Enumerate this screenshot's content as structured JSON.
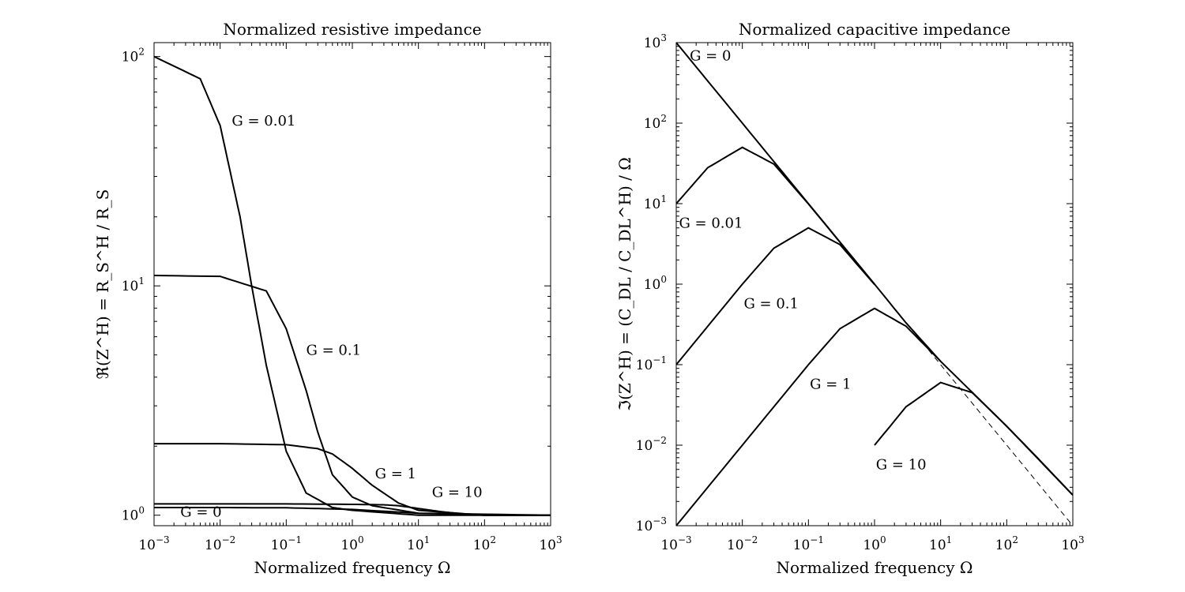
{
  "chart_data": [
    {
      "type": "line",
      "title": "Normalized resistive impedance",
      "xlabel": "Normalized frequency Ω",
      "ylabel": "ℜ(Z^H) = R_S^H / R_S",
      "xscale": "log",
      "yscale": "log",
      "xlim": [
        0.001,
        1000
      ],
      "ylim": [
        0.9,
        115
      ],
      "x_ticks": [
        {
          "value": 0.001,
          "base": "10",
          "exp": "−3"
        },
        {
          "value": 0.01,
          "base": "10",
          "exp": "−2"
        },
        {
          "value": 0.1,
          "base": "10",
          "exp": "−1"
        },
        {
          "value": 1,
          "base": "10",
          "exp": "0"
        },
        {
          "value": 10,
          "base": "10",
          "exp": "1"
        },
        {
          "value": 100,
          "base": "10",
          "exp": "2"
        },
        {
          "value": 1000,
          "base": "10",
          "exp": "3"
        }
      ],
      "y_ticks": [
        {
          "value": 1,
          "base": "10",
          "exp": "0"
        },
        {
          "value": 10,
          "base": "10",
          "exp": "1"
        },
        {
          "value": 100,
          "base": "10",
          "exp": "2"
        }
      ],
      "series": [
        {
          "name": "G = 0",
          "G": 0,
          "x": [
            0.001,
            0.01,
            0.1,
            1,
            10,
            100,
            1000
          ],
          "y": [
            1.08,
            1.08,
            1.077,
            1.06,
            1.02,
            1.0,
            1.0
          ]
        },
        {
          "name": "G = 0.01",
          "G": 0.01,
          "x": [
            0.001,
            0.005,
            0.01,
            0.02,
            0.03,
            0.05,
            0.1,
            0.2,
            0.5,
            1,
            10,
            1000
          ],
          "y": [
            100,
            80,
            50,
            20,
            10,
            4.5,
            1.9,
            1.25,
            1.08,
            1.05,
            1.0,
            1.0
          ]
        },
        {
          "name": "G = 0.1",
          "G": 0.1,
          "x": [
            0.001,
            0.01,
            0.05,
            0.1,
            0.2,
            0.3,
            0.5,
            1,
            2,
            10,
            1000
          ],
          "y": [
            11.1,
            11.0,
            9.5,
            6.5,
            3.5,
            2.3,
            1.5,
            1.2,
            1.1,
            1.02,
            1.0
          ]
        },
        {
          "name": "G = 1",
          "G": 1,
          "x": [
            0.001,
            0.01,
            0.1,
            0.3,
            0.5,
            1,
            2,
            5,
            10,
            100,
            1000
          ],
          "y": [
            2.05,
            2.05,
            2.03,
            1.95,
            1.85,
            1.6,
            1.35,
            1.13,
            1.05,
            1.0,
            1.0
          ]
        },
        {
          "name": "G = 10",
          "G": 10,
          "x": [
            0.001,
            0.1,
            1,
            3,
            5,
            10,
            20,
            50,
            100,
            1000
          ],
          "y": [
            1.12,
            1.12,
            1.115,
            1.11,
            1.1,
            1.07,
            1.04,
            1.01,
            1.0,
            1.0
          ]
        }
      ],
      "annotations": [
        {
          "text": "G = 0.01",
          "x": 0.015,
          "y": 50
        },
        {
          "text": "G = 0.1",
          "x": 0.2,
          "y": 5
        },
        {
          "text": "G = 1",
          "x": 2.2,
          "y": 1.45
        },
        {
          "text": "G = 10",
          "x": 16,
          "y": 1.2
        },
        {
          "text": "G = 0",
          "x": 0.0025,
          "y": 0.985
        }
      ]
    },
    {
      "type": "line",
      "title": "Normalized capacitive impedance",
      "xlabel": "Normalized frequency Ω",
      "ylabel": "ℑ(Z^H) = (C_DL / C_DL^H) / Ω",
      "xscale": "log",
      "yscale": "log",
      "xlim": [
        0.001,
        1000
      ],
      "ylim": [
        0.001,
        1000
      ],
      "x_ticks": [
        {
          "value": 0.001,
          "base": "10",
          "exp": "−3"
        },
        {
          "value": 0.01,
          "base": "10",
          "exp": "−2"
        },
        {
          "value": 0.1,
          "base": "10",
          "exp": "−1"
        },
        {
          "value": 1,
          "base": "10",
          "exp": "0"
        },
        {
          "value": 10,
          "base": "10",
          "exp": "1"
        },
        {
          "value": 100,
          "base": "10",
          "exp": "2"
        },
        {
          "value": 1000,
          "base": "10",
          "exp": "3"
        }
      ],
      "y_ticks": [
        {
          "value": 0.001,
          "base": "10",
          "exp": "−3"
        },
        {
          "value": 0.01,
          "base": "10",
          "exp": "−2"
        },
        {
          "value": 0.1,
          "base": "10",
          "exp": "−1"
        },
        {
          "value": 1,
          "base": "10",
          "exp": "0"
        },
        {
          "value": 10,
          "base": "10",
          "exp": "1"
        },
        {
          "value": 100,
          "base": "10",
          "exp": "2"
        },
        {
          "value": 1000,
          "base": "10",
          "exp": "3"
        }
      ],
      "series": [
        {
          "name": "G = 0",
          "G": 0,
          "style": "solid",
          "x": [
            0.001,
            0.01,
            0.1,
            1,
            3,
            10,
            100,
            1000
          ],
          "y": [
            1000,
            100,
            10,
            1,
            0.33,
            0.11,
            0.0172,
            0.0024
          ]
        },
        {
          "name": "G = 0.01",
          "G": 0.01,
          "style": "solid",
          "x": [
            0.001,
            0.003,
            0.01,
            0.03,
            0.1,
            1
          ],
          "y": [
            10,
            28,
            50,
            31,
            9.9,
            1
          ]
        },
        {
          "name": "G = 0.1",
          "G": 0.1,
          "style": "solid",
          "x": [
            0.001,
            0.01,
            0.03,
            0.1,
            0.3,
            1
          ],
          "y": [
            0.1,
            1,
            2.8,
            5,
            3.1,
            0.99
          ]
        },
        {
          "name": "G = 1",
          "G": 1,
          "style": "solid",
          "x": [
            0.001,
            0.01,
            0.1,
            0.3,
            1,
            3,
            10
          ],
          "y": [
            0.001,
            0.01,
            0.1,
            0.28,
            0.5,
            0.3,
            0.11
          ]
        },
        {
          "name": "G = 10",
          "G": 10,
          "style": "solid",
          "x": [
            1,
            3,
            10,
            30,
            100,
            300,
            1000
          ],
          "y": [
            0.01,
            0.03,
            0.06,
            0.045,
            0.0172,
            0.0068,
            0.0024
          ]
        },
        {
          "name": "",
          "style": "dashed",
          "x": [
            1,
            1000
          ],
          "y": [
            1,
            0.001
          ]
        }
      ],
      "annotations": [
        {
          "text": "G = 0",
          "x": 0.0016,
          "y": 600
        },
        {
          "text": "G = 0.01",
          "x": 0.0011,
          "y": 5
        },
        {
          "text": "G = 0.1",
          "x": 0.0105,
          "y": 0.5
        },
        {
          "text": "G = 1",
          "x": 0.105,
          "y": 0.05
        },
        {
          "text": "G = 10",
          "x": 1.05,
          "y": 0.005
        }
      ]
    }
  ]
}
